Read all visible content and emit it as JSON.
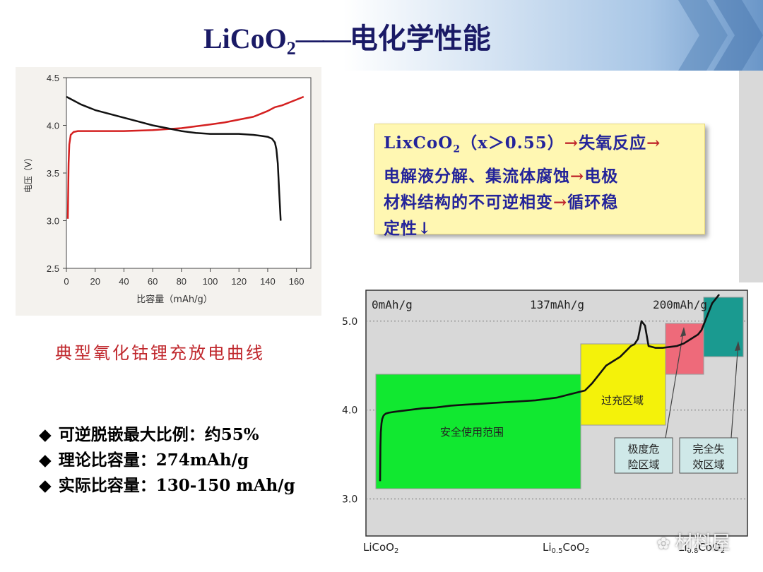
{
  "title": {
    "formula": "LiCoO",
    "subscript": "2",
    "dash": "——",
    "text": "电化学性能"
  },
  "left_caption": "典型氧化钴锂充放电曲线",
  "note": {
    "line1_a": "LixCoO",
    "line1_sub": "2",
    "line1_b": "（x＞0.55）",
    "line1_arrow": "→",
    "line1_c": "失氧反应",
    "line1_arrow2": "→",
    "line2_a": "电解液分解、集流体腐蚀",
    "line2_arrow": "→",
    "line2_b": "电极",
    "line3_a": "材料结构的不可逆相变",
    "line3_arrow": "→",
    "line3_b": "循环稳",
    "line4": "定性↓"
  },
  "bullets": [
    {
      "icon": "◆",
      "text": "可逆脱嵌最大比例：约55%"
    },
    {
      "icon": "◆",
      "text": "理论比容量：274mAh/g"
    },
    {
      "icon": "◆",
      "text": "实际比容量：130-150 mAh/g"
    }
  ],
  "watermark": "材料屋",
  "chart_data": [
    {
      "type": "line",
      "xlabel": "比容量（mAh/g）",
      "ylabel": "电压（V）",
      "xlim": [
        0,
        170
      ],
      "ylim": [
        2.5,
        4.5
      ],
      "xticks": [
        "0",
        "20",
        "40",
        "60",
        "80",
        "100",
        "120",
        "140",
        "160"
      ],
      "yticks": [
        "2.5",
        "3.0",
        "3.5",
        "4.0",
        "4.5"
      ],
      "colors": {
        "charge": "#d42020",
        "discharge": "#111111"
      },
      "series": [
        {
          "x": [
            1,
            1.5,
            2,
            3,
            5,
            8,
            12,
            20,
            30,
            40,
            60,
            80,
            100,
            110,
            120,
            130,
            135,
            140,
            145,
            150,
            155,
            160,
            165
          ],
          "y": [
            3.02,
            3.6,
            3.8,
            3.9,
            3.93,
            3.94,
            3.94,
            3.94,
            3.94,
            3.94,
            3.95,
            3.97,
            4.01,
            4.03,
            4.06,
            4.09,
            4.12,
            4.15,
            4.19,
            4.21,
            4.24,
            4.27,
            4.3
          ]
        },
        {
          "x": [
            0,
            5,
            10,
            20,
            30,
            40,
            50,
            60,
            70,
            80,
            90,
            100,
            110,
            120,
            130,
            135,
            140,
            143,
            145,
            146,
            147,
            148,
            149
          ],
          "y": [
            4.3,
            4.26,
            4.22,
            4.16,
            4.12,
            4.08,
            4.04,
            4.0,
            3.97,
            3.94,
            3.92,
            3.91,
            3.91,
            3.91,
            3.9,
            3.89,
            3.88,
            3.86,
            3.82,
            3.75,
            3.6,
            3.3,
            3.0
          ]
        }
      ]
    },
    {
      "type": "line",
      "ylim": [
        2.6,
        5.3
      ],
      "yticks": [
        "5.0",
        "4.0",
        "3.0"
      ],
      "top_labels": [
        "0mAh/g",
        "137mAh/g",
        "200mAh/g"
      ],
      "bottom_labels": [
        {
          "base": "LiCoO",
          "sub": "2",
          "tail": ""
        },
        {
          "base": "Li",
          "sub": "0.5",
          "tail": "CoO",
          "sub2": "2"
        },
        {
          "base": "Li",
          "sub": "0.8",
          "tail": "CoO",
          "sub2": "2"
        }
      ],
      "regions": [
        {
          "label": "安全使用范围",
          "color": "#11e830"
        },
        {
          "label": "过充区域",
          "color": "#f4f20a"
        },
        {
          "label": "极度危险区域",
          "label_lines": [
            "极度危",
            "险区域"
          ],
          "color": "#ee6a7a"
        },
        {
          "label": "完全失效区域",
          "label_lines": [
            "完全失",
            "效区域"
          ],
          "color": "#1a9a90"
        }
      ],
      "series": [
        {
          "x": [
            0,
            0.5,
            1,
            2,
            3,
            5,
            8,
            12,
            20,
            40,
            60,
            80,
            100,
            120,
            140,
            160,
            180,
            220,
            250,
            270,
            290,
            300,
            310,
            320,
            330,
            340,
            350,
            355,
            360,
            365,
            370,
            375,
            380,
            390,
            400,
            410,
            420,
            430,
            440,
            450,
            455,
            460,
            465,
            470,
            475,
            480
          ],
          "y": [
            3.2,
            3.6,
            3.75,
            3.85,
            3.9,
            3.94,
            3.96,
            3.97,
            3.98,
            4.0,
            4.02,
            4.03,
            4.05,
            4.06,
            4.07,
            4.08,
            4.09,
            4.11,
            4.14,
            4.18,
            4.22,
            4.3,
            4.4,
            4.5,
            4.55,
            4.6,
            4.68,
            4.72,
            4.74,
            4.8,
            5.0,
            4.95,
            4.72,
            4.7,
            4.7,
            4.71,
            4.72,
            4.75,
            4.8,
            4.85,
            4.9,
            5.0,
            5.1,
            5.2,
            5.25,
            5.3
          ]
        }
      ]
    }
  ]
}
